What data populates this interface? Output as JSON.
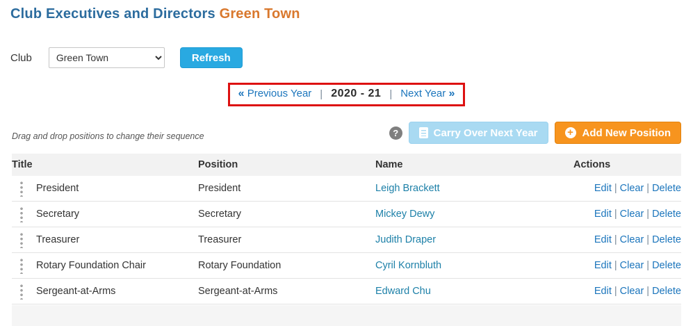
{
  "page": {
    "title": "Club Executives and Directors",
    "club_name": "Green Town"
  },
  "filter": {
    "club_label": "Club",
    "club_selected": "Green Town",
    "refresh_label": "Refresh"
  },
  "year_nav": {
    "prev_icon": "«",
    "prev_label": "Previous Year",
    "separator": "|",
    "current_year": "2020 - 21",
    "next_label": "Next Year",
    "next_icon": "»"
  },
  "toolbar": {
    "drag_hint": "Drag and drop positions to change their sequence",
    "help_icon": "?",
    "carry_over_label": "Carry Over Next Year",
    "add_icon": "+",
    "add_label": "Add New Position"
  },
  "table": {
    "headers": {
      "title": "Title",
      "position": "Position",
      "name": "Name",
      "actions": "Actions"
    },
    "action_labels": {
      "edit": "Edit",
      "separator": "|",
      "clear": "Clear",
      "delete": "Delete"
    },
    "rows": [
      {
        "title": "President",
        "position": "President",
        "name": "Leigh Brackett"
      },
      {
        "title": "Secretary",
        "position": "Secretary",
        "name": "Mickey Dewy"
      },
      {
        "title": "Treasurer",
        "position": "Treasurer",
        "name": "Judith Draper"
      },
      {
        "title": "Rotary Foundation Chair",
        "position": "Rotary Foundation",
        "name": "Cyril Kornbluth"
      },
      {
        "title": "Sergeant-at-Arms",
        "position": "Sergeant-at-Arms",
        "name": "Edward Chu"
      }
    ]
  },
  "colors": {
    "title_blue": "#2c6c9e",
    "accent_orange": "#f7941e",
    "refresh_blue": "#29a9e1",
    "carry_over_blue": "#a9daf2",
    "action_link_blue": "#1b75bc",
    "name_link_teal": "#1d80a8",
    "highlight_red": "#dd1111"
  }
}
